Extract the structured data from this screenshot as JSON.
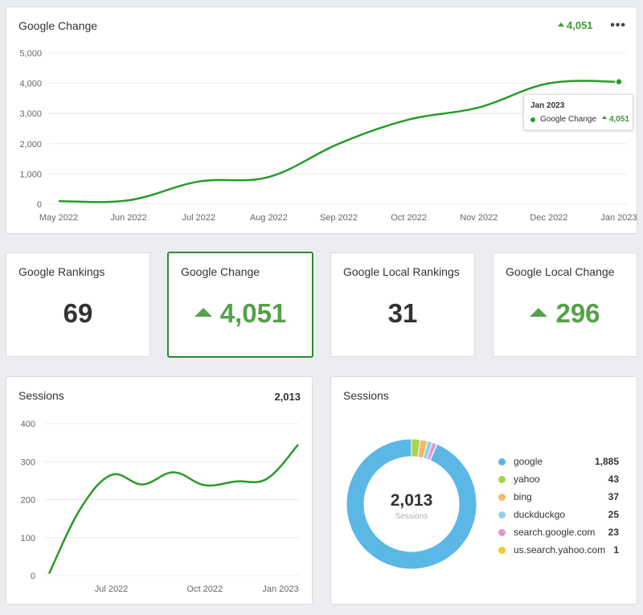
{
  "google_change_card": {
    "title": "Google Change",
    "header_value": "4,051",
    "menu_label": "•••",
    "tooltip": {
      "title": "Jan 2023",
      "series": "Google Change",
      "value": "4,051"
    }
  },
  "stats": [
    {
      "title": "Google Rankings",
      "value": "69",
      "trend": "none"
    },
    {
      "title": "Google Change",
      "value": "4,051",
      "trend": "up"
    },
    {
      "title": "Google Local Rankings",
      "value": "31",
      "trend": "none"
    },
    {
      "title": "Google Local Change",
      "value": "296",
      "trend": "up"
    }
  ],
  "sessions_line_card": {
    "title": "Sessions",
    "header_value": "2,013"
  },
  "sessions_donut_card": {
    "title": "Sessions",
    "center_value": "2,013",
    "center_label": "Sessions",
    "legend": [
      {
        "label": "google",
        "value": "1,885",
        "color": "#5bb8e6"
      },
      {
        "label": "yahoo",
        "value": "43",
        "color": "#a6d44e"
      },
      {
        "label": "bing",
        "value": "37",
        "color": "#f5b96a"
      },
      {
        "label": "duckduckgo",
        "value": "25",
        "color": "#8fd0ee"
      },
      {
        "label": "search.google.com",
        "value": "23",
        "color": "#e396d0"
      },
      {
        "label": "us.search.yahoo.com",
        "value": "1",
        "color": "#f0cc2e"
      }
    ]
  },
  "colors": {
    "line": "#2a9a2a",
    "accent_green": "#55a14b",
    "selected_border": "#2f8a2f"
  },
  "chart_data": [
    {
      "type": "line",
      "title": "Google Change",
      "categories": [
        "May 2022",
        "Jun 2022",
        "Jul 2022",
        "Aug 2022",
        "Sep 2022",
        "Oct 2022",
        "Nov 2022",
        "Dec 2022",
        "Jan 2023"
      ],
      "series": [
        {
          "name": "Google Change",
          "values": [
            100,
            130,
            750,
            900,
            2000,
            2800,
            3200,
            4000,
            4051
          ]
        }
      ],
      "yticks": [
        "0",
        "1,000",
        "2,000",
        "3,000",
        "4,000",
        "5,000"
      ],
      "ylim": [
        0,
        5000
      ],
      "grid": true
    },
    {
      "type": "line",
      "title": "Sessions",
      "x_labels": [
        "Jul 2022",
        "Oct 2022",
        "Jan 2023"
      ],
      "x_label_positions": [
        2,
        5,
        8
      ],
      "series": [
        {
          "name": "Sessions",
          "values": [
            5,
            175,
            265,
            240,
            272,
            238,
            248,
            255,
            345
          ]
        }
      ],
      "yticks": [
        "0",
        "100",
        "200",
        "300",
        "400"
      ],
      "ylim": [
        0,
        400
      ],
      "grid": true
    },
    {
      "type": "pie",
      "title": "Sessions",
      "labels": [
        "google",
        "yahoo",
        "bing",
        "duckduckgo",
        "search.google.com",
        "us.search.yahoo.com"
      ],
      "values": [
        1885,
        43,
        37,
        25,
        23,
        1
      ]
    }
  ]
}
